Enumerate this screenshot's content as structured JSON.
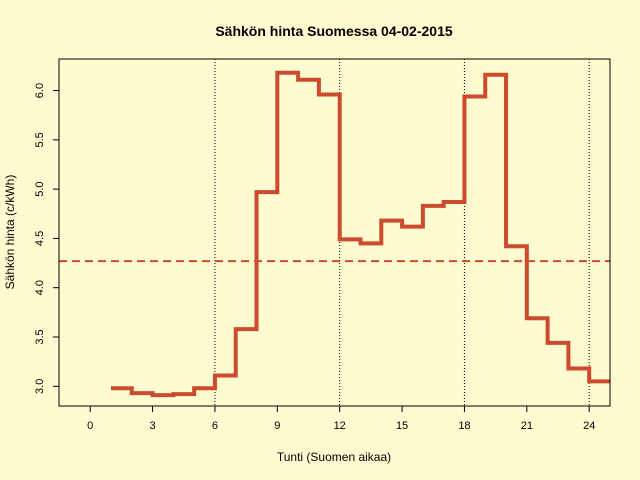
{
  "chart_data": {
    "type": "line",
    "step": true,
    "title": "Sähkön hinta Suomessa 04-02-2015",
    "xlabel": "Tunti (Suomen aikaa)",
    "ylabel": "Sähkön hinta (c/kWh)",
    "xlim": [
      -1.5,
      25
    ],
    "ylim": [
      2.8,
      6.32
    ],
    "x_ticks": [
      0,
      3,
      6,
      9,
      12,
      15,
      18,
      21,
      24
    ],
    "y_ticks": [
      3.0,
      3.5,
      4.0,
      4.5,
      5.0,
      5.5,
      6.0
    ],
    "x_tick_labels": [
      "0",
      "3",
      "6",
      "9",
      "12",
      "15",
      "18",
      "21",
      "24"
    ],
    "y_tick_labels": [
      "3.0",
      "3.5",
      "4.0",
      "4.5",
      "5.0",
      "5.5",
      "6.0"
    ],
    "vertical_reference_lines": [
      6,
      12,
      18,
      24
    ],
    "average_line": 4.27,
    "series": [
      {
        "color": "#cc4a2e",
        "x": [
          1,
          2,
          3,
          4,
          5,
          6,
          7,
          8,
          9,
          10,
          11,
          12,
          13,
          14,
          15,
          16,
          17,
          18,
          19,
          20,
          21,
          22,
          23,
          24
        ],
        "values": [
          2.98,
          2.93,
          2.91,
          2.92,
          2.98,
          3.11,
          3.58,
          4.97,
          6.18,
          6.11,
          5.96,
          4.49,
          4.45,
          4.68,
          4.62,
          4.83,
          4.87,
          5.94,
          6.16,
          4.42,
          3.69,
          3.44,
          3.18,
          3.05
        ]
      }
    ],
    "colors": {
      "background": "#fffbd0",
      "line": "#cc4a2e",
      "average": "#cc4a2e",
      "reference": "#000000"
    }
  }
}
